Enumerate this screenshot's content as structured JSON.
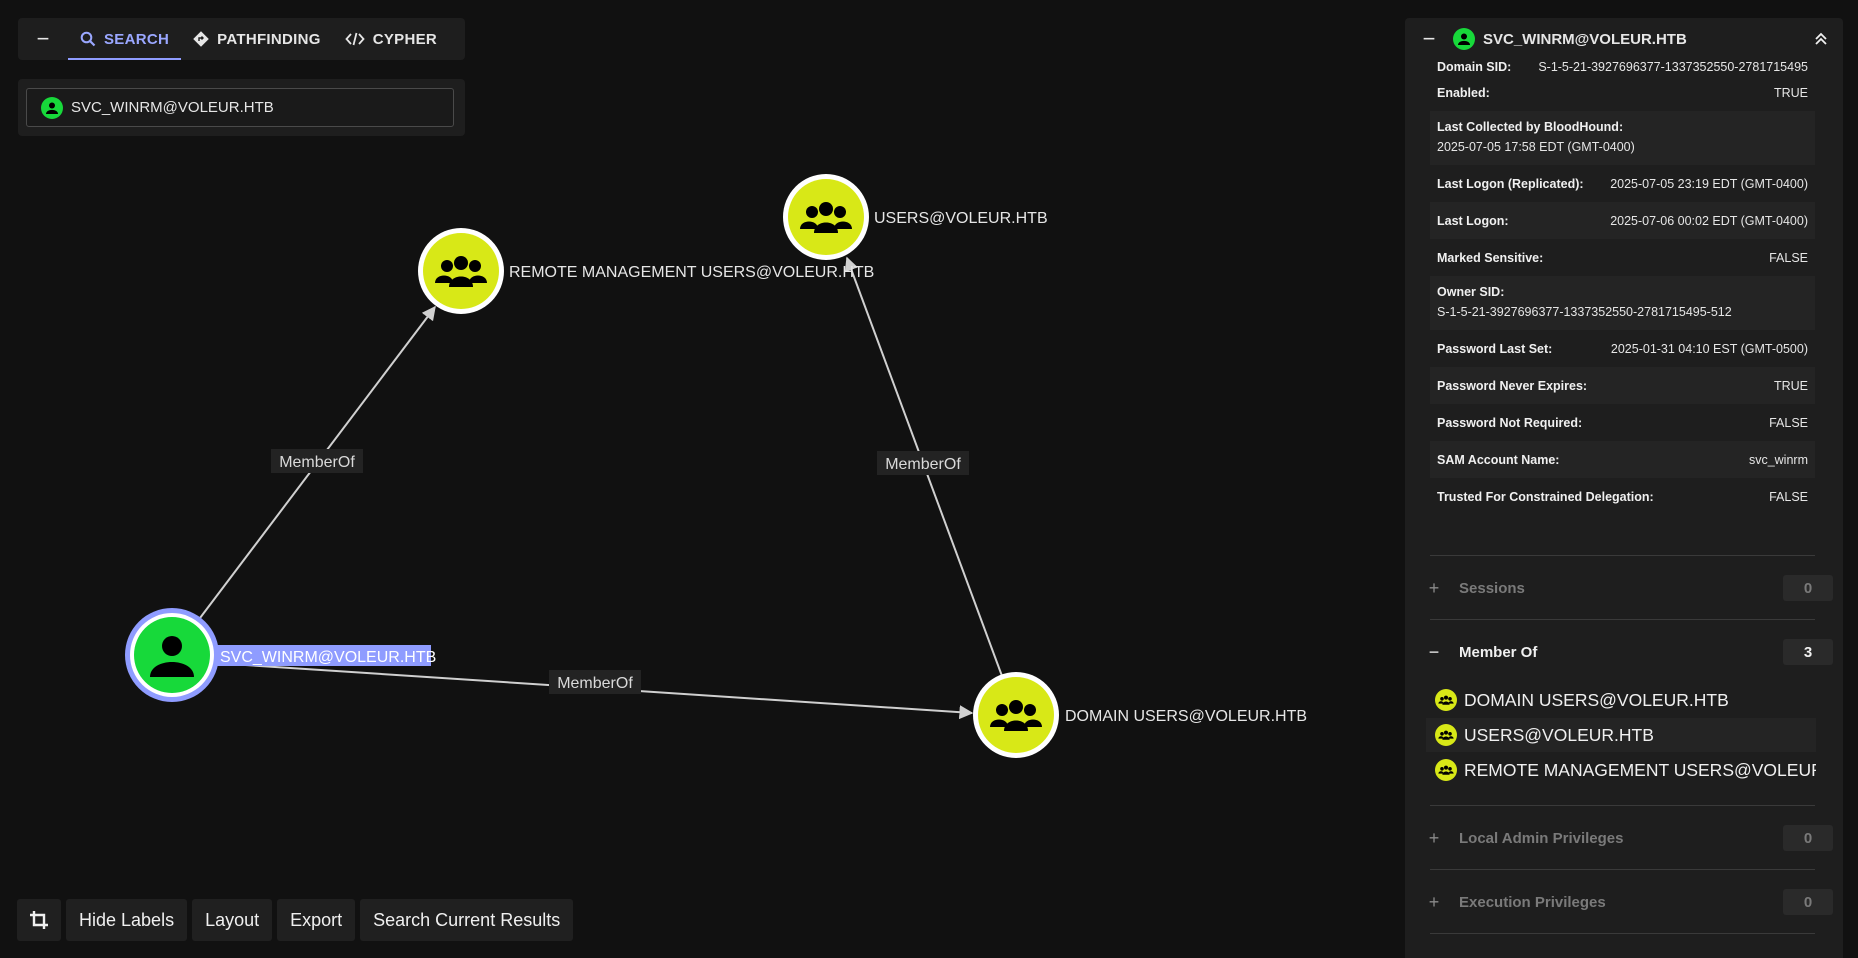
{
  "search_panel": {
    "tabs": [
      {
        "label": "SEARCH",
        "icon": "search-icon"
      },
      {
        "label": "PATHFINDING",
        "icon": "pathfinding-icon"
      },
      {
        "label": "CYPHER",
        "icon": "code-icon"
      }
    ],
    "search_value": "SVC_WINRM@VOLEUR.HTB"
  },
  "graph": {
    "nodes": [
      {
        "label": "SVC_WINRM@VOLEUR.HTB",
        "kind": "user",
        "selected": true
      },
      {
        "label": "REMOTE MANAGEMENT USERS@VOLEUR.HTB",
        "kind": "group"
      },
      {
        "label": "USERS@VOLEUR.HTB",
        "kind": "group"
      },
      {
        "label": "DOMAIN USERS@VOLEUR.HTB",
        "kind": "group"
      }
    ],
    "edges": [
      {
        "label": "MemberOf",
        "from": "SVC_WINRM@VOLEUR.HTB",
        "to": "REMOTE MANAGEMENT USERS@VOLEUR.HTB"
      },
      {
        "label": "MemberOf",
        "from": "DOMAIN USERS@VOLEUR.HTB",
        "to": "USERS@VOLEUR.HTB"
      },
      {
        "label": "MemberOf",
        "from": "SVC_WINRM@VOLEUR.HTB",
        "to": "DOMAIN USERS@VOLEUR.HTB"
      }
    ],
    "colors": {
      "user": "#17d93a",
      "group": "#d8e817",
      "selection": "#8f9cff"
    }
  },
  "toolbar": {
    "crop_icon": "crop-icon",
    "hide_labels": "Hide Labels",
    "layout": "Layout",
    "export": "Export",
    "search_current": "Search Current Results"
  },
  "entity_panel": {
    "title": "SVC_WINRM@VOLEUR.HTB",
    "properties": [
      {
        "key": "Domain SID:",
        "value": "S-1-5-21-3927696377-1337352550-2781715495"
      },
      {
        "key": "Enabled:",
        "value": "TRUE"
      },
      {
        "key": "Last Collected by BloodHound:",
        "value": "2025-07-05 17:58 EDT (GMT-0400)"
      },
      {
        "key": "Last Logon (Replicated):",
        "value": "2025-07-05 23:19 EDT (GMT-0400)"
      },
      {
        "key": "Last Logon:",
        "value": "2025-07-06 00:02 EDT (GMT-0400)"
      },
      {
        "key": "Marked Sensitive:",
        "value": "FALSE"
      },
      {
        "key": "Owner SID:",
        "value": "S-1-5-21-3927696377-1337352550-2781715495-512"
      },
      {
        "key": "Password Last Set:",
        "value": "2025-01-31 04:10 EST (GMT-0500)"
      },
      {
        "key": "Password Never Expires:",
        "value": "TRUE"
      },
      {
        "key": "Password Not Required:",
        "value": "FALSE"
      },
      {
        "key": "SAM Account Name:",
        "value": "svc_winrm"
      },
      {
        "key": "Trusted For Constrained Delegation:",
        "value": "FALSE"
      }
    ],
    "sections": {
      "sessions": {
        "label": "Sessions",
        "count": "0",
        "sym": "+"
      },
      "member_of": {
        "label": "Member Of",
        "count": "3",
        "sym": "−"
      },
      "local_admin": {
        "label": "Local Admin Privileges",
        "count": "0",
        "sym": "+"
      },
      "execution": {
        "label": "Execution Privileges",
        "count": "0",
        "sym": "+"
      }
    },
    "member_of_items": [
      "DOMAIN USERS@VOLEUR.HTB",
      "USERS@VOLEUR.HTB",
      "REMOTE MANAGEMENT USERS@VOLEUR...."
    ]
  }
}
